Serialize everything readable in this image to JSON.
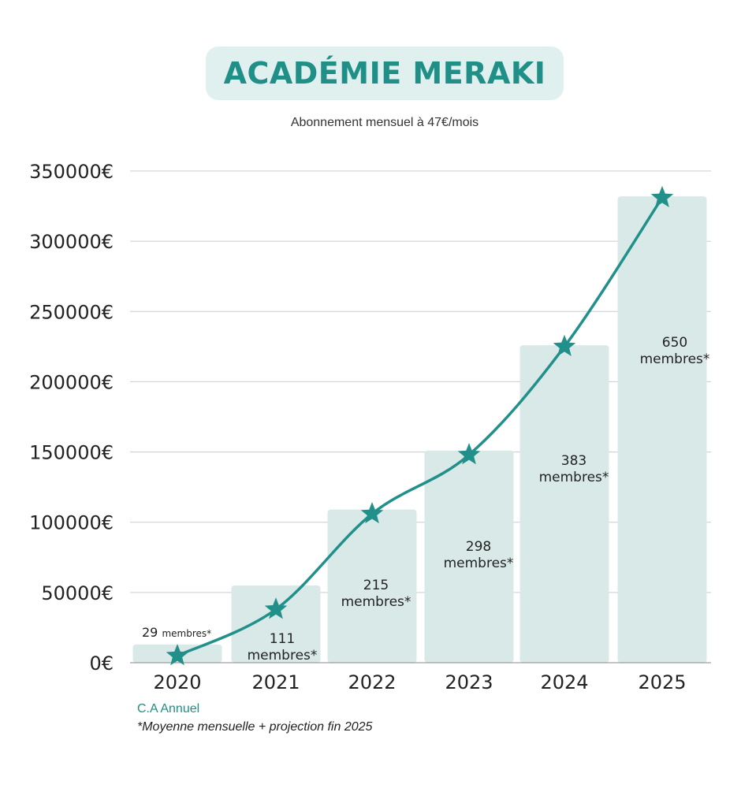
{
  "header": {
    "title": "ACADÉMIE MERAKI",
    "subtitle": "Abonnement mensuel à 47€/mois"
  },
  "chart_data": {
    "type": "bar",
    "categories": [
      "2020",
      "2021",
      "2022",
      "2023",
      "2024",
      "2025"
    ],
    "series": [
      {
        "values": [
          13000,
          55000,
          109000,
          151000,
          226000,
          332000
        ]
      },
      {
        "values": [
          5000,
          38000,
          106000,
          148000,
          225000,
          331000
        ]
      }
    ],
    "bar_labels": [
      {
        "count": "29",
        "unit": "membres*"
      },
      {
        "count": "111",
        "unit": "membres*"
      },
      {
        "count": "215",
        "unit": "membres*"
      },
      {
        "count": "298",
        "unit": "membres*"
      },
      {
        "count": "383",
        "unit": "membres*"
      },
      {
        "count": "650",
        "unit": "membres*"
      }
    ],
    "y_ticks": [
      "0€",
      "50000€",
      "100000€",
      "150000€",
      "200000€",
      "250000€",
      "300000€",
      "350000€"
    ],
    "ylim": [
      0,
      350000
    ],
    "grid": true,
    "colors": {
      "bar": "#d9e9e8",
      "line": "#22908a",
      "grid": "#cccccc",
      "axis": "#888888"
    }
  },
  "footer": {
    "label": "C.A Annuel",
    "note": "*Moyenne mensuelle + projection fin 2025"
  }
}
